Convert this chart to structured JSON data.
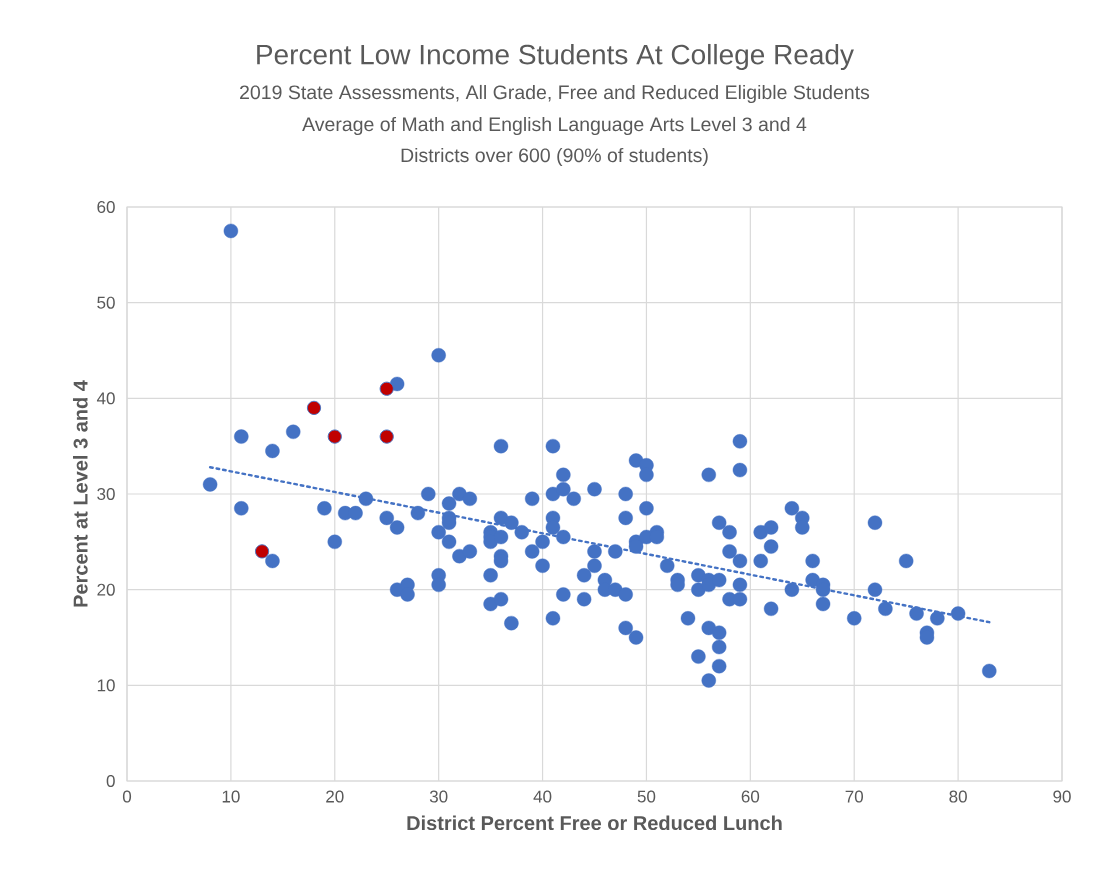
{
  "chart_data": {
    "type": "scatter",
    "title": "Percent Low Income Students At College Ready",
    "subtitle": "2019 State Assessments, All Grade, Free and Reduced Eligible Students",
    "annotations": [
      "Average of Math and English Language Arts Level 3 and 4",
      "Districts over 600 (90% of students)"
    ],
    "xlabel": "District Percent Free or Reduced Lunch",
    "ylabel": "Percent at Level 3 and 4",
    "xlim": [
      0,
      90
    ],
    "ylim": [
      0,
      60
    ],
    "xticks": [
      0,
      10,
      20,
      30,
      40,
      50,
      60,
      70,
      80,
      90
    ],
    "yticks": [
      0,
      10,
      20,
      30,
      40,
      50,
      60
    ],
    "grid": true,
    "legend": false,
    "marker": "circle",
    "series": [
      {
        "color": "#4472c4",
        "x": [
          10,
          30,
          26,
          11,
          16,
          14,
          8,
          11,
          14,
          19,
          20,
          21,
          22,
          23,
          25,
          26,
          26,
          27,
          27,
          28,
          29,
          30,
          30,
          30,
          31,
          31,
          31,
          31,
          32,
          32,
          33,
          33,
          35,
          35,
          35,
          35,
          35,
          36,
          36,
          36,
          36,
          36,
          36,
          37,
          37,
          38,
          39,
          39,
          40,
          40,
          41,
          41,
          41,
          41,
          41,
          42,
          42,
          42,
          42,
          43,
          44,
          44,
          45,
          45,
          45,
          46,
          46,
          47,
          47,
          48,
          48,
          48,
          48,
          49,
          49,
          49,
          49,
          50,
          50,
          50,
          50,
          51,
          51,
          52,
          53,
          53,
          54,
          55,
          55,
          55,
          56,
          56,
          56,
          56,
          56,
          57,
          57,
          57,
          57,
          57,
          58,
          58,
          58,
          59,
          59,
          59,
          59,
          59,
          61,
          61,
          62,
          62,
          62,
          64,
          64,
          65,
          65,
          66,
          66,
          67,
          67,
          67,
          70,
          72,
          72,
          73,
          75,
          76,
          77,
          77,
          78,
          80,
          83
        ],
        "values": [
          57.5,
          44.5,
          41.5,
          36,
          36.5,
          34.5,
          31,
          28.5,
          23,
          28.5,
          25,
          28,
          28,
          29.5,
          27.5,
          26.5,
          20,
          20.5,
          19.5,
          28,
          30,
          26,
          21.5,
          20.5,
          29,
          27.5,
          27,
          25,
          30,
          23.5,
          29.5,
          24,
          26,
          25.5,
          25,
          21.5,
          18.5,
          35,
          27.5,
          25.5,
          23.5,
          23,
          19,
          27,
          16.5,
          26,
          29.5,
          24,
          25,
          22.5,
          35,
          30,
          27.5,
          26.5,
          17,
          32,
          30.5,
          25.5,
          19.5,
          29.5,
          21.5,
          19,
          30.5,
          24,
          22.5,
          21,
          20,
          24,
          20,
          30,
          27.5,
          19.5,
          16,
          33.5,
          25,
          24.5,
          15,
          33,
          32,
          28.5,
          25.5,
          26,
          25.5,
          22.5,
          21,
          20.5,
          17,
          21.5,
          20,
          13,
          32,
          21,
          20.5,
          16,
          10.5,
          27,
          21,
          15.5,
          14,
          12,
          26,
          24,
          19,
          35.5,
          32.5,
          23,
          20.5,
          19,
          26,
          23,
          26.5,
          24.5,
          18,
          28.5,
          20,
          27.5,
          26.5,
          23,
          21,
          20.5,
          20,
          18.5,
          17,
          27,
          20,
          18,
          23,
          17.5,
          15.5,
          15,
          17,
          17.5,
          11.5
        ]
      },
      {
        "color": "#c00000",
        "x": [
          13,
          18,
          20,
          25,
          25
        ],
        "values": [
          24,
          39,
          36,
          41,
          36
        ]
      },
      {
        "type": "line",
        "color": "#4472c4",
        "line_style": "dotted",
        "marker": "none",
        "x": [
          8,
          83
        ],
        "values": [
          32.8,
          16.6
        ]
      }
    ]
  }
}
